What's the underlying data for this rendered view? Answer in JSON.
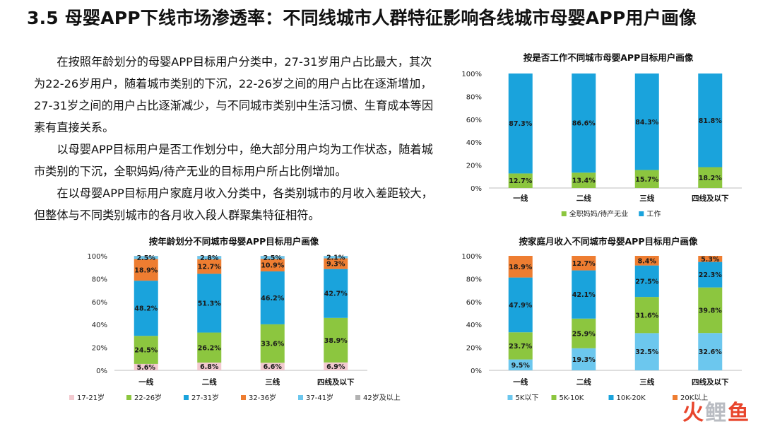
{
  "page": {
    "title": "3.5 母婴APP下线市场渗透率：不同线城市人群特征影响各线城市母婴APP用户画像",
    "paragraphs": [
      "在按照年龄划分的母婴APP目标用户分类中，27-31岁用户占比最大，其次为22-26岁用户，随着城市类别的下沉，22-26岁之间的用户占比在逐渐增加，27-31岁之间的用户占比逐渐减少，与不同城市类别中生活习惯、生育成本等因素有直接关系。",
      "以母婴APP目标用户是否工作划分中，绝大部分用户均为工作状态，随着城市类别的下沉，全职妈妈/待产无业的目标用户所占比例增加。",
      "在以母婴APP目标用户家庭月收入分类中，各类别城市的月收入差距较大，但整体与不同类别城市的各月收入段人群聚集特征相符。"
    ],
    "watermark": [
      "火",
      "鲤",
      "鱼"
    ]
  },
  "chart_data": [
    {
      "id": "work",
      "type": "bar",
      "stacked": true,
      "title": "按是否工作不同城市母婴APP目标用户画像",
      "categories": [
        "一线",
        "二线",
        "三线",
        "四线及以下"
      ],
      "ylim": [
        0,
        100
      ],
      "yticks": [
        "0%",
        "20%",
        "40%",
        "60%",
        "80%",
        "100%"
      ],
      "legend_position": "bottom",
      "series": [
        {
          "name": "全职妈妈/待产无业",
          "color": "#8cc63f",
          "values": [
            12.7,
            13.4,
            15.7,
            18.2
          ],
          "labels": [
            "12.7%",
            "13.4%",
            "15.7%",
            "18.2%"
          ]
        },
        {
          "name": "工作",
          "color": "#1aa3dc",
          "values": [
            87.3,
            86.6,
            84.3,
            81.8
          ],
          "labels": [
            "87.3%",
            "86.6%",
            "84.3%",
            "81.8%"
          ]
        }
      ]
    },
    {
      "id": "age",
      "type": "bar",
      "stacked": true,
      "title": "按年龄划分不同城市母婴APP目标用户画像",
      "categories": [
        "一线",
        "二线",
        "三线",
        "四线及以下"
      ],
      "ylim": [
        0,
        100
      ],
      "yticks": [
        "0%",
        "20%",
        "40%",
        "60%",
        "80%",
        "100%"
      ],
      "legend_position": "bottom",
      "series": [
        {
          "name": "17-21岁",
          "color": "#f2c9cf",
          "values": [
            5.6,
            6.8,
            6.6,
            6.9
          ],
          "labels": [
            "5.6%",
            "6.8%",
            "6.6%",
            "6.9%"
          ]
        },
        {
          "name": "22-26岁",
          "color": "#8cc63f",
          "values": [
            24.5,
            26.2,
            33.6,
            38.9
          ],
          "labels": [
            "24.5%",
            "26.2%",
            "33.6%",
            "38.9%"
          ]
        },
        {
          "name": "27-31岁",
          "color": "#1aa3dc",
          "values": [
            48.2,
            51.3,
            46.2,
            42.7
          ],
          "labels": [
            "48.2%",
            "51.3%",
            "46.2%",
            "42.7%"
          ]
        },
        {
          "name": "32-36岁",
          "color": "#ee7d31",
          "values": [
            18.9,
            12.7,
            10.9,
            9.3
          ],
          "labels": [
            "18.9%",
            "12.7%",
            "10.9%",
            "9.3%"
          ]
        },
        {
          "name": "37-41岁",
          "color": "#6cc7ee",
          "values": [
            2.5,
            2.8,
            2.5,
            2.1
          ],
          "labels": [
            "2.5%",
            "2.8%",
            "2.5%",
            "2.1%"
          ]
        },
        {
          "name": "42岁及以上",
          "color": "#b2b2b2",
          "values": [
            0.3,
            0.2,
            0.2,
            0.1
          ],
          "labels": [
            "",
            "",
            "",
            ""
          ]
        }
      ]
    },
    {
      "id": "income",
      "type": "bar",
      "stacked": true,
      "title": "按家庭月收入不同城市母婴APP目标用户画像",
      "categories": [
        "一线",
        "二线",
        "三线",
        "四线及以下"
      ],
      "ylim": [
        0,
        100
      ],
      "yticks": [
        "0%",
        "20%",
        "40%",
        "60%",
        "80%",
        "100%"
      ],
      "legend_position": "bottom",
      "series": [
        {
          "name": "5K以下",
          "color": "#6cc7ee",
          "values": [
            9.5,
            19.3,
            32.5,
            32.6
          ],
          "labels": [
            "9.5%",
            "19.3%",
            "32.5%",
            "32.6%"
          ]
        },
        {
          "name": "5K-10K",
          "color": "#8cc63f",
          "values": [
            23.7,
            25.9,
            31.6,
            39.8
          ],
          "labels": [
            "23.7%",
            "25.9%",
            "31.6%",
            "39.8%"
          ]
        },
        {
          "name": "10K-20K",
          "color": "#1aa3dc",
          "values": [
            47.9,
            42.1,
            27.5,
            22.3
          ],
          "labels": [
            "47.9%",
            "42.1%",
            "27.5%",
            "22.3%"
          ]
        },
        {
          "name": "20K以上",
          "color": "#ee7d31",
          "values": [
            18.9,
            12.7,
            8.4,
            5.3
          ],
          "labels": [
            "18.9%",
            "12.7%",
            "8.4%",
            "5.3%"
          ]
        }
      ]
    }
  ]
}
